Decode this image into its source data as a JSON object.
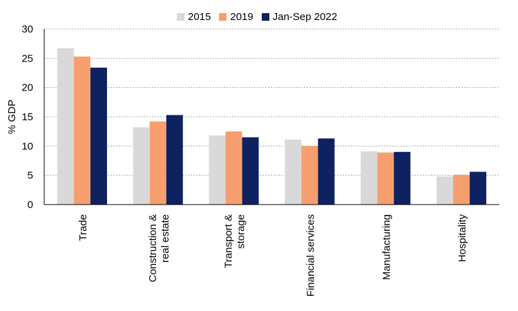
{
  "chart_data": {
    "type": "bar",
    "categories": [
      [
        "Trade"
      ],
      [
        "Construction &",
        "real estate"
      ],
      [
        "Transport &",
        "storage"
      ],
      [
        "Financial services"
      ],
      [
        "Manufacturing"
      ],
      [
        "Hospitality"
      ]
    ],
    "series": [
      {
        "name": "2015",
        "color": "#d9d9d9",
        "values": [
          26.7,
          13.2,
          11.8,
          11.1,
          9.1,
          4.8
        ]
      },
      {
        "name": "2019",
        "color": "#f79e6e",
        "values": [
          25.3,
          14.2,
          12.5,
          10.0,
          8.9,
          5.1
        ]
      },
      {
        "name": "Jan-Sep 2022",
        "color": "#0e2160",
        "values": [
          23.4,
          15.3,
          11.5,
          11.3,
          9.0,
          5.6
        ]
      }
    ],
    "ylabel": "% GDP",
    "ylim": [
      0,
      30
    ],
    "yticks": [
      0,
      5,
      10,
      15,
      20,
      25,
      30
    ],
    "grid": true,
    "legend": "top-center"
  }
}
